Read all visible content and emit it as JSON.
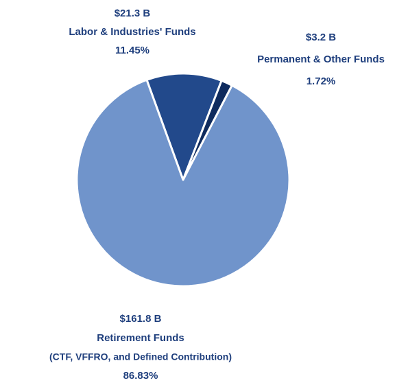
{
  "chart_data": {
    "type": "pie",
    "categories": [
      "Labor & Industries' Funds",
      "Permanent & Other Funds",
      "Retirement Funds"
    ],
    "category_notes": [
      null,
      null,
      "(CTF, VFFRO, and Defined Contribution)"
    ],
    "values": [
      11.45,
      1.72,
      86.83
    ],
    "value_labels": [
      "11.45%",
      "1.72%",
      "86.83%"
    ],
    "amount_labels": [
      "$21.3 B",
      "$3.2 B",
      "$161.8 B"
    ],
    "colors": [
      "#22498b",
      "#0f2b5e",
      "#7094cb"
    ]
  }
}
